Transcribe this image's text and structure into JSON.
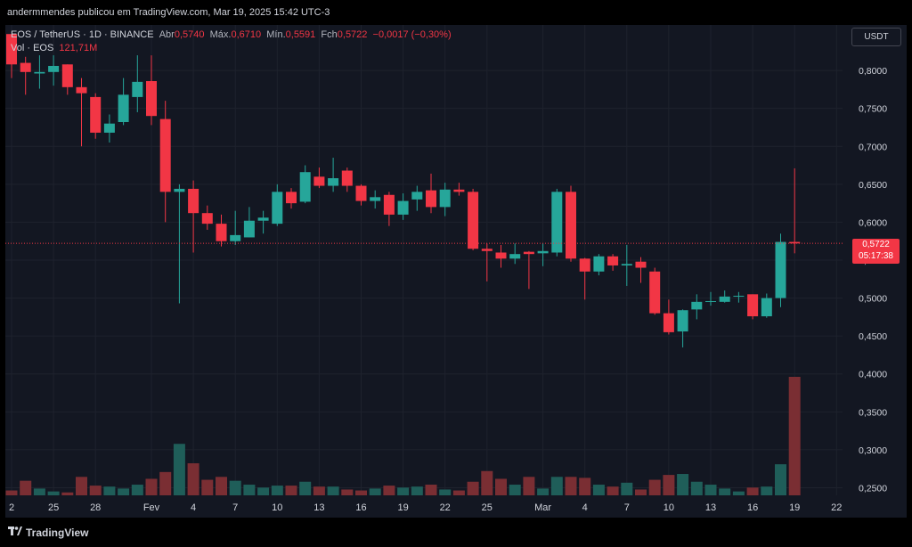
{
  "header": {
    "publisher_text": "andermmendes publicou em TradingView.com, Mar 19, 2025 15:42 UTC-3"
  },
  "legend": {
    "symbol_line": "EOS / TetherUS · 1D · BINANCE",
    "open_label": "Abr",
    "open_value": "0,5740",
    "high_label": "Máx.",
    "high_value": "0,6710",
    "low_label": "Mín.",
    "low_value": "0,5591",
    "close_label": "Fch",
    "close_value": "0,5722",
    "change_value": "−0,0017 (−0,30%)",
    "vol_label": "Vol · EOS",
    "vol_value": "121,71M"
  },
  "currency_button": "USDT",
  "price_tag": {
    "price": "0,5722",
    "countdown": "05:17:38"
  },
  "footer": {
    "brand": "TradingView",
    "logo_icon": "tradingview-logo-icon"
  },
  "colors": {
    "up": "#26a69a",
    "down": "#f23645",
    "vol_up": "#1f5e59",
    "vol_down": "#7a2e33",
    "grid": "#1e222d",
    "axis_text": "#d1d4dc"
  },
  "chart_data": {
    "type": "candlestick",
    "y_range": [
      0.24,
      0.86
    ],
    "y_ticks": [
      "0,8000",
      "0,7500",
      "0,7000",
      "0,6500",
      "0,6000",
      "0,5500",
      "0,5000",
      "0,4500",
      "0,4000",
      "0,3500",
      "0,3000",
      "0,2500"
    ],
    "y_tick_values": [
      0.8,
      0.75,
      0.7,
      0.65,
      0.6,
      0.55,
      0.5,
      0.45,
      0.4,
      0.35,
      0.3,
      0.25
    ],
    "x_ticks": [
      {
        "label": "2",
        "index": 0
      },
      {
        "label": "25",
        "index": 3
      },
      {
        "label": "28",
        "index": 6
      },
      {
        "label": "Fev",
        "index": 10
      },
      {
        "label": "4",
        "index": 13
      },
      {
        "label": "7",
        "index": 16
      },
      {
        "label": "10",
        "index": 19
      },
      {
        "label": "13",
        "index": 22
      },
      {
        "label": "16",
        "index": 25
      },
      {
        "label": "19",
        "index": 28
      },
      {
        "label": "22",
        "index": 31
      },
      {
        "label": "25",
        "index": 34
      },
      {
        "label": "Mar",
        "index": 38
      },
      {
        "label": "4",
        "index": 41
      },
      {
        "label": "7",
        "index": 44
      },
      {
        "label": "10",
        "index": 47
      },
      {
        "label": "13",
        "index": 50
      },
      {
        "label": "16",
        "index": 53
      },
      {
        "label": "19",
        "index": 56
      },
      {
        "label": "22",
        "index": 59
      }
    ],
    "last_price": 0.5722,
    "candles": [
      {
        "o": 0.848,
        "h": 0.848,
        "l": 0.79,
        "c": 0.808,
        "v": 5
      },
      {
        "o": 0.81,
        "h": 0.818,
        "l": 0.768,
        "c": 0.798,
        "v": 15
      },
      {
        "o": 0.796,
        "h": 0.82,
        "l": 0.776,
        "c": 0.798,
        "v": 7
      },
      {
        "o": 0.798,
        "h": 0.82,
        "l": 0.78,
        "c": 0.806,
        "v": 4
      },
      {
        "o": 0.808,
        "h": 0.808,
        "l": 0.768,
        "c": 0.778,
        "v": 3
      },
      {
        "o": 0.778,
        "h": 0.79,
        "l": 0.7,
        "c": 0.77,
        "v": 19
      },
      {
        "o": 0.765,
        "h": 0.77,
        "l": 0.71,
        "c": 0.718,
        "v": 10
      },
      {
        "o": 0.718,
        "h": 0.742,
        "l": 0.705,
        "c": 0.73,
        "v": 9
      },
      {
        "o": 0.732,
        "h": 0.79,
        "l": 0.728,
        "c": 0.768,
        "v": 7
      },
      {
        "o": 0.765,
        "h": 0.82,
        "l": 0.745,
        "c": 0.785,
        "v": 11
      },
      {
        "o": 0.786,
        "h": 0.82,
        "l": 0.728,
        "c": 0.74,
        "v": 17
      },
      {
        "o": 0.736,
        "h": 0.76,
        "l": 0.6,
        "c": 0.64,
        "v": 24
      },
      {
        "o": 0.64,
        "h": 0.65,
        "l": 0.493,
        "c": 0.644,
        "v": 53
      },
      {
        "o": 0.644,
        "h": 0.655,
        "l": 0.56,
        "c": 0.612,
        "v": 33
      },
      {
        "o": 0.612,
        "h": 0.622,
        "l": 0.59,
        "c": 0.598,
        "v": 16
      },
      {
        "o": 0.598,
        "h": 0.61,
        "l": 0.568,
        "c": 0.575,
        "v": 19
      },
      {
        "o": 0.575,
        "h": 0.615,
        "l": 0.57,
        "c": 0.583,
        "v": 15
      },
      {
        "o": 0.58,
        "h": 0.62,
        "l": 0.58,
        "c": 0.602,
        "v": 11
      },
      {
        "o": 0.602,
        "h": 0.615,
        "l": 0.585,
        "c": 0.606,
        "v": 8
      },
      {
        "o": 0.598,
        "h": 0.65,
        "l": 0.595,
        "c": 0.64,
        "v": 10
      },
      {
        "o": 0.64,
        "h": 0.645,
        "l": 0.618,
        "c": 0.625,
        "v": 10
      },
      {
        "o": 0.627,
        "h": 0.675,
        "l": 0.625,
        "c": 0.666,
        "v": 14
      },
      {
        "o": 0.66,
        "h": 0.672,
        "l": 0.645,
        "c": 0.648,
        "v": 9
      },
      {
        "o": 0.648,
        "h": 0.685,
        "l": 0.64,
        "c": 0.658,
        "v": 9
      },
      {
        "o": 0.668,
        "h": 0.672,
        "l": 0.64,
        "c": 0.648,
        "v": 6
      },
      {
        "o": 0.648,
        "h": 0.65,
        "l": 0.622,
        "c": 0.628,
        "v": 5
      },
      {
        "o": 0.628,
        "h": 0.642,
        "l": 0.618,
        "c": 0.633,
        "v": 7
      },
      {
        "o": 0.636,
        "h": 0.64,
        "l": 0.595,
        "c": 0.61,
        "v": 10
      },
      {
        "o": 0.61,
        "h": 0.638,
        "l": 0.603,
        "c": 0.628,
        "v": 8
      },
      {
        "o": 0.63,
        "h": 0.648,
        "l": 0.615,
        "c": 0.64,
        "v": 9
      },
      {
        "o": 0.642,
        "h": 0.664,
        "l": 0.612,
        "c": 0.62,
        "v": 11
      },
      {
        "o": 0.62,
        "h": 0.652,
        "l": 0.608,
        "c": 0.643,
        "v": 6
      },
      {
        "o": 0.643,
        "h": 0.652,
        "l": 0.635,
        "c": 0.64,
        "v": 5
      },
      {
        "o": 0.64,
        "h": 0.644,
        "l": 0.563,
        "c": 0.565,
        "v": 14
      },
      {
        "o": 0.565,
        "h": 0.572,
        "l": 0.522,
        "c": 0.562,
        "v": 25
      },
      {
        "o": 0.56,
        "h": 0.57,
        "l": 0.54,
        "c": 0.552,
        "v": 17
      },
      {
        "o": 0.552,
        "h": 0.572,
        "l": 0.545,
        "c": 0.558,
        "v": 11
      },
      {
        "o": 0.561,
        "h": 0.562,
        "l": 0.512,
        "c": 0.558,
        "v": 19
      },
      {
        "o": 0.559,
        "h": 0.572,
        "l": 0.542,
        "c": 0.562,
        "v": 7
      },
      {
        "o": 0.56,
        "h": 0.644,
        "l": 0.555,
        "c": 0.64,
        "v": 19
      },
      {
        "o": 0.64,
        "h": 0.648,
        "l": 0.548,
        "c": 0.552,
        "v": 19
      },
      {
        "o": 0.552,
        "h": 0.553,
        "l": 0.498,
        "c": 0.535,
        "v": 18
      },
      {
        "o": 0.535,
        "h": 0.558,
        "l": 0.53,
        "c": 0.555,
        "v": 11
      },
      {
        "o": 0.555,
        "h": 0.558,
        "l": 0.536,
        "c": 0.543,
        "v": 9
      },
      {
        "o": 0.543,
        "h": 0.57,
        "l": 0.516,
        "c": 0.545,
        "v": 13
      },
      {
        "o": 0.548,
        "h": 0.554,
        "l": 0.52,
        "c": 0.54,
        "v": 6
      },
      {
        "o": 0.535,
        "h": 0.54,
        "l": 0.478,
        "c": 0.48,
        "v": 16
      },
      {
        "o": 0.48,
        "h": 0.498,
        "l": 0.452,
        "c": 0.455,
        "v": 21
      },
      {
        "o": 0.456,
        "h": 0.485,
        "l": 0.435,
        "c": 0.484,
        "v": 22
      },
      {
        "o": 0.485,
        "h": 0.505,
        "l": 0.472,
        "c": 0.495,
        "v": 14
      },
      {
        "o": 0.495,
        "h": 0.508,
        "l": 0.49,
        "c": 0.496,
        "v": 11
      },
      {
        "o": 0.495,
        "h": 0.51,
        "l": 0.494,
        "c": 0.502,
        "v": 7
      },
      {
        "o": 0.502,
        "h": 0.508,
        "l": 0.494,
        "c": 0.503,
        "v": 4
      },
      {
        "o": 0.505,
        "h": 0.505,
        "l": 0.472,
        "c": 0.476,
        "v": 8
      },
      {
        "o": 0.476,
        "h": 0.506,
        "l": 0.474,
        "c": 0.5,
        "v": 9
      },
      {
        "o": 0.5,
        "h": 0.585,
        "l": 0.488,
        "c": 0.574,
        "v": 32
      },
      {
        "o": 0.574,
        "h": 0.671,
        "l": 0.559,
        "c": 0.572,
        "v": 122
      }
    ]
  }
}
